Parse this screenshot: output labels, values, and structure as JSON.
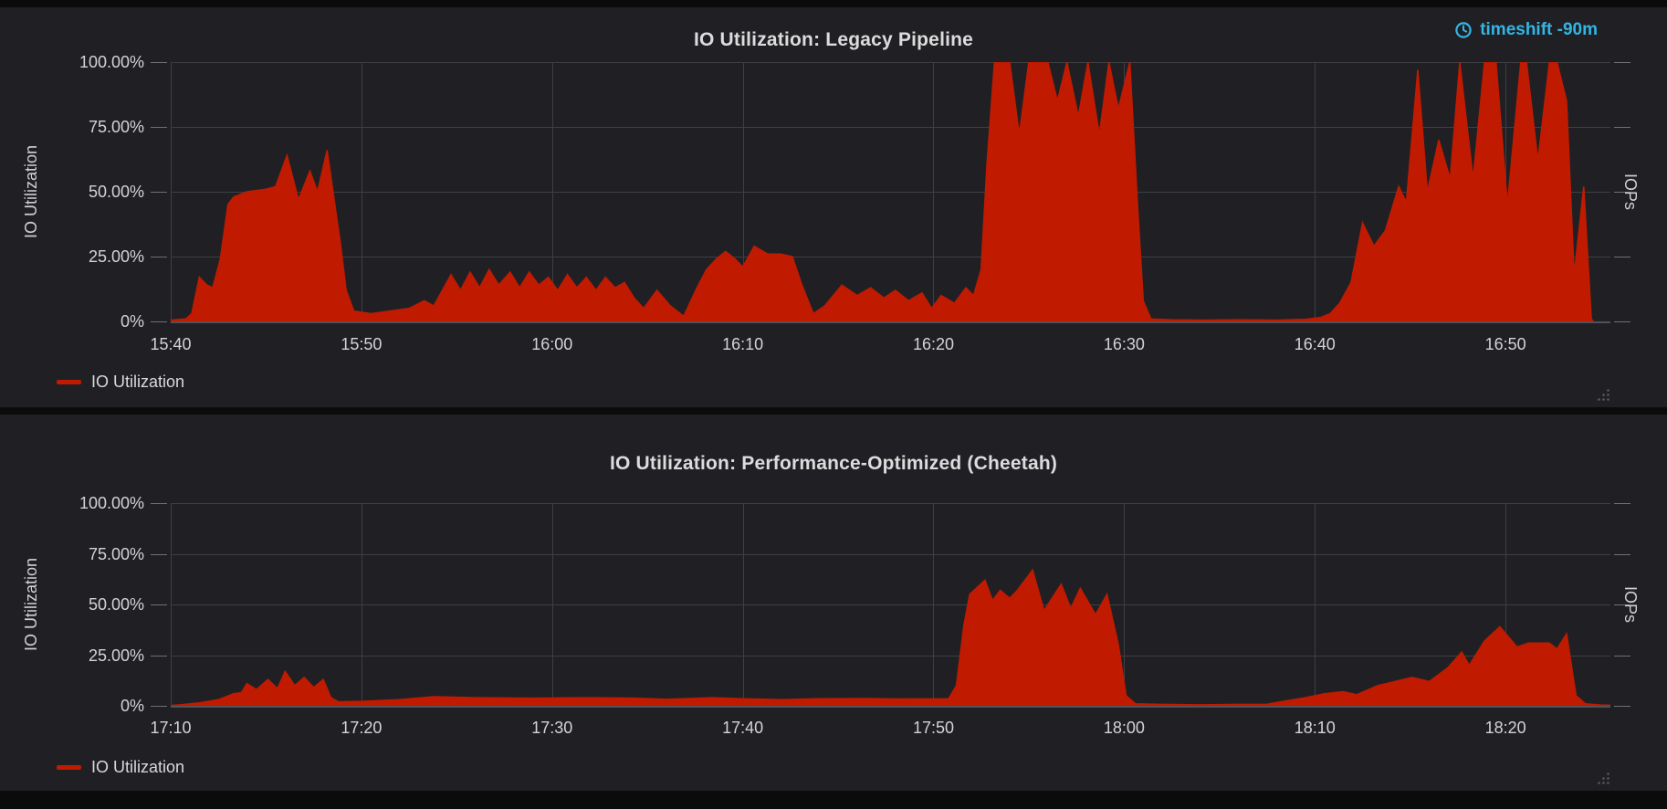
{
  "colors": {
    "series_red": "#c01b01",
    "timeshift_blue": "#33b5e5",
    "panel_bg": "#202024",
    "page_bg": "#0b0b0c",
    "gridline": "#3e3f43",
    "text": "#d8d9da"
  },
  "panels": [
    {
      "title": "IO Utilization: Legacy Pipeline",
      "badges": {
        "timeshift": "timeshift -90m"
      },
      "left_axis_label": "IO Utilization",
      "right_axis_label": "IOPs",
      "y_tick_labels": [
        "100.00%",
        "75.00%",
        "50.00%",
        "25.00%",
        "0%"
      ],
      "x_tick_labels": [
        "15:40",
        "15:50",
        "16:00",
        "16:10",
        "16:20",
        "16:30",
        "16:40",
        "16:50"
      ],
      "legend_items": [
        {
          "label": "IO Utilization",
          "color": "#c01b01"
        }
      ]
    },
    {
      "title": "IO Utilization: Performance-Optimized (Cheetah)",
      "left_axis_label": "IO Utilization",
      "right_axis_label": "IOPs",
      "y_tick_labels": [
        "100.00%",
        "75.00%",
        "50.00%",
        "25.00%",
        "0%"
      ],
      "x_tick_labels": [
        "17:10",
        "17:20",
        "17:30",
        "17:40",
        "17:50",
        "18:00",
        "18:10",
        "18:20"
      ],
      "legend_items": [
        {
          "label": "IO Utilization",
          "color": "#c01b01"
        }
      ]
    }
  ],
  "chart_data": [
    {
      "type": "area",
      "title": "IO Utilization: Legacy Pipeline",
      "ylabel": "IO Utilization",
      "ylabel_right": "IOPs",
      "ylim": [
        0,
        100
      ],
      "y_ticks_pct": [
        100,
        75,
        50,
        25,
        0
      ],
      "grid": true,
      "legend_position": "bottom-left",
      "x_domain_minutes": [
        40,
        115.5
      ],
      "x_tick_minutes": [
        40,
        50,
        60,
        70,
        80,
        90,
        100,
        110
      ],
      "x_tick_labels": [
        "15:40",
        "15:50",
        "16:00",
        "16:10",
        "16:20",
        "16:30",
        "16:40",
        "16:50"
      ],
      "series": [
        {
          "name": "IO Utilization",
          "color": "#c01b01",
          "unit": "%",
          "points": [
            [
              40,
              0.5
            ],
            [
              40.8,
              1
            ],
            [
              41.1,
              3
            ],
            [
              41.5,
              17
            ],
            [
              41.9,
              14
            ],
            [
              42.2,
              13
            ],
            [
              42.6,
              24
            ],
            [
              43,
              45
            ],
            [
              43.3,
              48
            ],
            [
              44,
              50
            ],
            [
              45,
              51
            ],
            [
              45.5,
              52
            ],
            [
              46.1,
              64
            ],
            [
              46.7,
              47
            ],
            [
              47.3,
              58
            ],
            [
              47.7,
              50
            ],
            [
              48.2,
              66
            ],
            [
              48.9,
              30
            ],
            [
              49.2,
              12
            ],
            [
              49.6,
              4
            ],
            [
              50.5,
              3
            ],
            [
              51.5,
              4
            ],
            [
              52.5,
              5
            ],
            [
              53.3,
              8
            ],
            [
              53.8,
              6
            ],
            [
              54.7,
              18
            ],
            [
              55.2,
              12
            ],
            [
              55.7,
              19
            ],
            [
              56.2,
              13
            ],
            [
              56.7,
              20
            ],
            [
              57.2,
              14
            ],
            [
              57.8,
              19
            ],
            [
              58.3,
              13
            ],
            [
              58.8,
              19
            ],
            [
              59.3,
              14
            ],
            [
              59.8,
              17
            ],
            [
              60.3,
              12
            ],
            [
              60.8,
              18
            ],
            [
              61.3,
              13
            ],
            [
              61.8,
              17
            ],
            [
              62.3,
              12
            ],
            [
              62.8,
              17
            ],
            [
              63.3,
              13
            ],
            [
              63.8,
              15
            ],
            [
              64.3,
              9
            ],
            [
              64.8,
              5
            ],
            [
              65.5,
              12
            ],
            [
              66.2,
              6
            ],
            [
              66.9,
              2
            ],
            [
              67.6,
              13
            ],
            [
              68.1,
              20
            ],
            [
              68.6,
              24
            ],
            [
              69.1,
              27
            ],
            [
              69.6,
              24
            ],
            [
              70,
              21
            ],
            [
              70.6,
              29
            ],
            [
              71.3,
              26
            ],
            [
              72,
              26
            ],
            [
              72.6,
              25
            ],
            [
              73.1,
              14
            ],
            [
              73.7,
              3
            ],
            [
              74.3,
              6
            ],
            [
              75.2,
              14
            ],
            [
              76,
              10
            ],
            [
              76.7,
              13
            ],
            [
              77.4,
              9
            ],
            [
              78,
              12
            ],
            [
              78.7,
              8
            ],
            [
              79.4,
              11
            ],
            [
              79.9,
              5
            ],
            [
              80.4,
              10
            ],
            [
              81.1,
              7
            ],
            [
              81.7,
              13
            ],
            [
              82.1,
              10
            ],
            [
              82.5,
              20
            ],
            [
              82.8,
              60
            ],
            [
              83.2,
              100
            ],
            [
              84,
              100
            ],
            [
              84.5,
              72
            ],
            [
              85,
              100
            ],
            [
              86,
              100
            ],
            [
              86.5,
              85
            ],
            [
              87,
              100
            ],
            [
              87.6,
              79
            ],
            [
              88.1,
              100
            ],
            [
              88.7,
              72
            ],
            [
              89.2,
              100
            ],
            [
              89.7,
              82
            ],
            [
              90.3,
              100
            ],
            [
              90.7,
              45
            ],
            [
              91,
              8
            ],
            [
              91.4,
              1
            ],
            [
              92.5,
              0.6
            ],
            [
              94,
              0.5
            ],
            [
              96,
              0.6
            ],
            [
              98,
              0.5
            ],
            [
              99.5,
              0.8
            ],
            [
              100.3,
              1.5
            ],
            [
              100.8,
              3
            ],
            [
              101.3,
              7
            ],
            [
              101.9,
              15
            ],
            [
              102.5,
              38
            ],
            [
              103.1,
              29
            ],
            [
              103.7,
              35
            ],
            [
              104.4,
              52
            ],
            [
              104.8,
              46
            ],
            [
              105.4,
              97
            ],
            [
              105.9,
              50
            ],
            [
              106.5,
              70
            ],
            [
              107.1,
              55
            ],
            [
              107.6,
              100
            ],
            [
              108.3,
              55
            ],
            [
              108.9,
              100
            ],
            [
              109.5,
              100
            ],
            [
              110.1,
              45
            ],
            [
              110.8,
              100
            ],
            [
              111.1,
              100
            ],
            [
              111.7,
              62
            ],
            [
              112.3,
              100
            ],
            [
              112.7,
              100
            ],
            [
              113.2,
              85
            ],
            [
              113.6,
              18
            ],
            [
              114.1,
              52
            ],
            [
              114.5,
              1
            ],
            [
              114.6,
              0
            ]
          ]
        }
      ]
    },
    {
      "type": "area",
      "title": "IO Utilization: Performance-Optimized (Cheetah)",
      "ylabel": "IO Utilization",
      "ylabel_right": "IOPs",
      "ylim": [
        0,
        100
      ],
      "y_ticks_pct": [
        100,
        75,
        50,
        25,
        0
      ],
      "grid": true,
      "legend_position": "bottom-left",
      "x_domain_minutes": [
        10,
        85.5
      ],
      "x_tick_minutes": [
        10,
        20,
        30,
        40,
        50,
        60,
        70,
        80
      ],
      "x_tick_labels": [
        "17:10",
        "17:20",
        "17:30",
        "17:40",
        "17:50",
        "18:00",
        "18:10",
        "18:20"
      ],
      "series": [
        {
          "name": "IO Utilization",
          "color": "#c01b01",
          "unit": "%",
          "points": [
            [
              10,
              0.2
            ],
            [
              10.5,
              0.5
            ],
            [
              11.5,
              1.5
            ],
            [
              12.5,
              3
            ],
            [
              13.3,
              6
            ],
            [
              13.7,
              6.5
            ],
            [
              14,
              11
            ],
            [
              14.5,
              8
            ],
            [
              15.1,
              13
            ],
            [
              15.6,
              8.5
            ],
            [
              16,
              17
            ],
            [
              16.5,
              10
            ],
            [
              17,
              14
            ],
            [
              17.5,
              9
            ],
            [
              18,
              13
            ],
            [
              18.4,
              4
            ],
            [
              18.8,
              2
            ],
            [
              20,
              2.2
            ],
            [
              22,
              3
            ],
            [
              23.8,
              4.5
            ],
            [
              26,
              4
            ],
            [
              29,
              3.8
            ],
            [
              32,
              4
            ],
            [
              34.4,
              3.8
            ],
            [
              36,
              3.2
            ],
            [
              38.4,
              4
            ],
            [
              40,
              3.5
            ],
            [
              42.1,
              3
            ],
            [
              44,
              3.5
            ],
            [
              46.5,
              3.6
            ],
            [
              48,
              3.4
            ],
            [
              50.8,
              3.5
            ],
            [
              51.2,
              10
            ],
            [
              51.6,
              40
            ],
            [
              51.9,
              55
            ],
            [
              52.7,
              62
            ],
            [
              53.1,
              52
            ],
            [
              53.5,
              57
            ],
            [
              54,
              53
            ],
            [
              54.4,
              57
            ],
            [
              55.2,
              67
            ],
            [
              55.8,
              47
            ],
            [
              56.7,
              60
            ],
            [
              57.2,
              48
            ],
            [
              57.7,
              58
            ],
            [
              58.5,
              45
            ],
            [
              59.1,
              55
            ],
            [
              59.7,
              30
            ],
            [
              60.1,
              5
            ],
            [
              60.6,
              1
            ],
            [
              62,
              0.7
            ],
            [
              64,
              0.5
            ],
            [
              66,
              0.7
            ],
            [
              67.5,
              0.8
            ],
            [
              68.2,
              2
            ],
            [
              69.5,
              4
            ],
            [
              70.5,
              6
            ],
            [
              71.5,
              7
            ],
            [
              72.2,
              5.5
            ],
            [
              73.3,
              10
            ],
            [
              74.2,
              12
            ],
            [
              75.1,
              14
            ],
            [
              76,
              12
            ],
            [
              77,
              19
            ],
            [
              77.7,
              26.5
            ],
            [
              78.1,
              20
            ],
            [
              78.9,
              32
            ],
            [
              79.7,
              39
            ],
            [
              80.6,
              29
            ],
            [
              81.2,
              31
            ],
            [
              82.3,
              31
            ],
            [
              82.7,
              28
            ],
            [
              83.2,
              35.5
            ],
            [
              83.7,
              5
            ],
            [
              84.2,
              1
            ],
            [
              85,
              0.4
            ],
            [
              85.5,
              0.3
            ]
          ]
        }
      ]
    }
  ]
}
